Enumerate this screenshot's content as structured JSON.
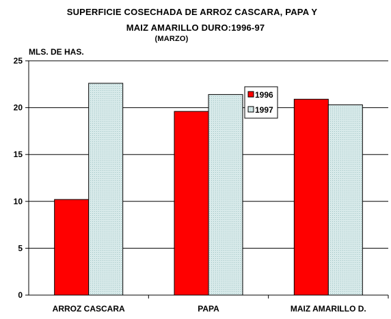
{
  "title_line1": "SUPERFICIE COSECHADA DE ARROZ CASCARA, PAPA Y",
  "title_line2": "MAIZ AMARILLO DURO:1996-97",
  "subtitle": "(MARZO)",
  "colors": {
    "s1996": "#ff0000",
    "s1997": "#d8eaea"
  },
  "chart_data": {
    "type": "bar",
    "title": "SUPERFICIE COSECHADA DE ARROZ CASCARA, PAPA Y MAIZ AMARILLO DURO:1996-97",
    "subtitle": "(MARZO)",
    "ylabel": "MLS. DE HAS.",
    "xlabel": "",
    "categories": [
      "ARROZ CASCARA",
      "PAPA",
      "MAIZ AMARILLO D."
    ],
    "series": [
      {
        "name": "1996",
        "values": [
          10.2,
          19.6,
          20.9
        ]
      },
      {
        "name": "1997",
        "values": [
          22.6,
          21.4,
          20.3
        ]
      }
    ],
    "ylim": [
      0,
      25
    ],
    "yticks": [
      "0",
      "5",
      "10",
      "15",
      "20",
      "25"
    ],
    "grid": true,
    "legend_position": "top-right"
  }
}
